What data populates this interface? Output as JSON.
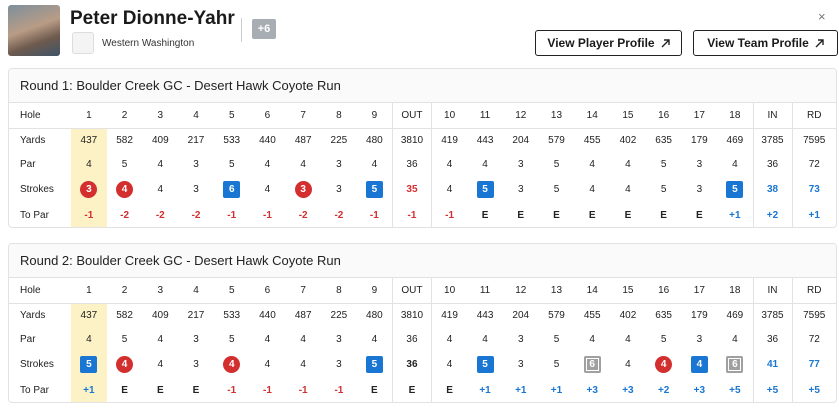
{
  "header": {
    "name": "Peter Dionne-Yahr",
    "team": "Western Washington",
    "badge": "+6",
    "buttons": [
      "View Player Profile",
      "View Team Profile"
    ],
    "close": "×"
  },
  "rounds": [
    {
      "title": "Round 1: Boulder Creek GC - Desert Hawk Coyote Run",
      "rows": [
        {
          "label": "Hole",
          "cells": [
            "1",
            "2",
            "3",
            "4",
            "5",
            "6",
            "7",
            "8",
            "9",
            "OUT",
            "10",
            "11",
            "12",
            "13",
            "14",
            "15",
            "16",
            "17",
            "18",
            "IN",
            "RD"
          ]
        },
        {
          "label": "Yards",
          "cells": [
            437,
            582,
            409,
            217,
            533,
            440,
            487,
            225,
            480,
            3810,
            419,
            443,
            204,
            579,
            455,
            402,
            635,
            179,
            469,
            3785,
            7595
          ]
        },
        {
          "label": "Par",
          "cells": [
            4,
            5,
            4,
            3,
            5,
            4,
            4,
            3,
            4,
            36,
            4,
            4,
            3,
            5,
            4,
            4,
            5,
            3,
            4,
            36,
            72
          ]
        },
        {
          "label": "Strokes",
          "cells": [
            3,
            4,
            4,
            3,
            6,
            4,
            3,
            3,
            5,
            35,
            4,
            5,
            3,
            5,
            4,
            4,
            5,
            3,
            5,
            38,
            73
          ]
        },
        {
          "label": "To Par",
          "cells": [
            "-1",
            "-2",
            "-2",
            "-2",
            "-1",
            "-1",
            "-2",
            "-2",
            "-1",
            "-1",
            "-1",
            "E",
            "E",
            "E",
            "E",
            "E",
            "E",
            "E",
            "+1",
            "+2",
            "+1"
          ]
        }
      ]
    },
    {
      "title": "Round 2: Boulder Creek GC - Desert Hawk Coyote Run",
      "rows": [
        {
          "label": "Hole",
          "cells": [
            "1",
            "2",
            "3",
            "4",
            "5",
            "6",
            "7",
            "8",
            "9",
            "OUT",
            "10",
            "11",
            "12",
            "13",
            "14",
            "15",
            "16",
            "17",
            "18",
            "IN",
            "RD"
          ]
        },
        {
          "label": "Yards",
          "cells": [
            437,
            582,
            409,
            217,
            533,
            440,
            487,
            225,
            480,
            3810,
            419,
            443,
            204,
            579,
            455,
            402,
            635,
            179,
            469,
            3785,
            7595
          ]
        },
        {
          "label": "Par",
          "cells": [
            4,
            5,
            4,
            3,
            5,
            4,
            4,
            3,
            4,
            36,
            4,
            4,
            3,
            5,
            4,
            4,
            5,
            3,
            4,
            36,
            72
          ]
        },
        {
          "label": "Strokes",
          "cells": [
            5,
            4,
            4,
            3,
            4,
            4,
            4,
            3,
            5,
            36,
            4,
            5,
            3,
            5,
            6,
            4,
            4,
            4,
            6,
            41,
            77
          ]
        },
        {
          "label": "To Par",
          "cells": [
            "+1",
            "E",
            "E",
            "E",
            "-1",
            "-1",
            "-1",
            "-1",
            "E",
            "E",
            "E",
            "+1",
            "+1",
            "+1",
            "+3",
            "+3",
            "+2",
            "+3",
            "+5",
            "+5",
            "+5"
          ]
        }
      ]
    }
  ]
}
